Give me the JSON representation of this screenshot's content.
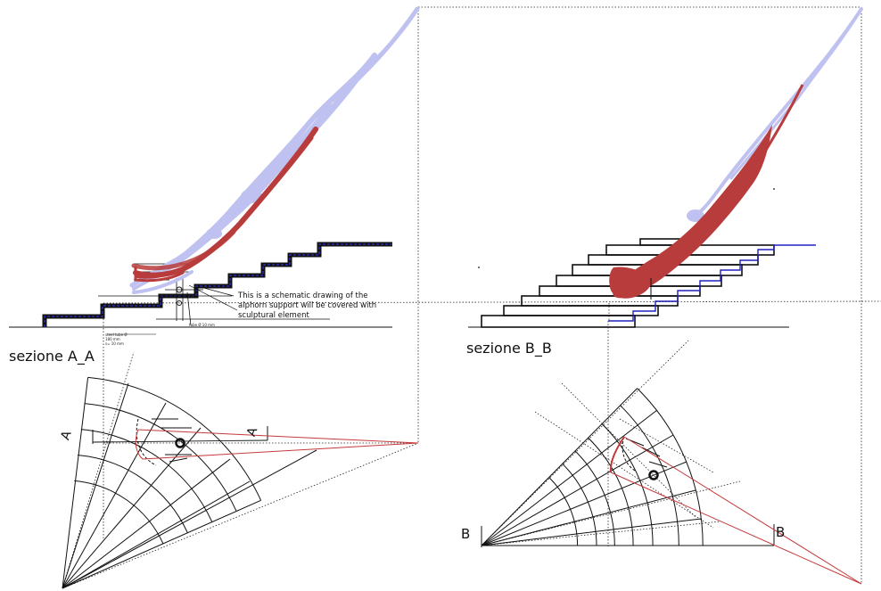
{
  "section_a": {
    "title": "sezione A_A",
    "marker": "A"
  },
  "section_b": {
    "title": "sezione B_B",
    "marker": "B"
  },
  "note": {
    "line1": "This is a schematic drawing of the",
    "line2": "alphorn support will be covered with",
    "line3": "sculptural element"
  },
  "specs": {
    "line1": "steel tube Ø",
    "line2": "180 mm",
    "line3": "s= 10 mm",
    "tube": "tube Ø 10 mm"
  },
  "colors": {
    "horn": "#bfc2f0",
    "support": "#b83c3c",
    "stairs": "#111111",
    "stair_edge": "#1a1aa0",
    "section_line": "#c43a3a"
  }
}
